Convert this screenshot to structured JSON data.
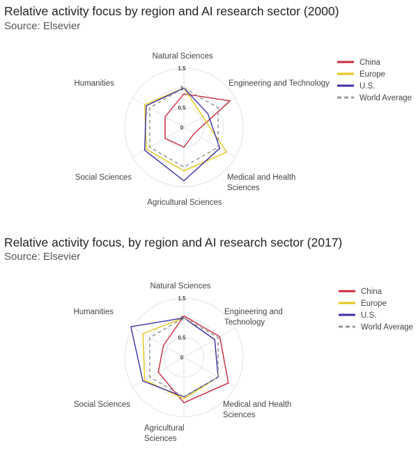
{
  "charts": [
    {
      "title": "Relative activity focus by region and AI research sector (2000)",
      "source": "Source: Elsevier"
    },
    {
      "title": "Relative activity focus, by region and AI research sector (2017)",
      "source": "Source: Elsevier"
    }
  ],
  "chart_data": [
    {
      "type": "radar",
      "title": "Relative activity focus by region and AI research sector (2000)",
      "source": "Source: Elsevier",
      "axes": [
        "Natural Sciences",
        "Engineering and Technology",
        "Medical and Health Sciences",
        "Agricultural Sciences",
        "Social Sciences",
        "Humanities"
      ],
      "axis_labels": [
        [
          "Natural Sciences"
        ],
        [
          "Engineering and Technology"
        ],
        [
          "Medical and Health",
          "Sciences"
        ],
        [
          "Agricultural Sciences"
        ],
        [
          "Social Sciences"
        ],
        [
          "Humanities"
        ]
      ],
      "r_ticks": [
        0,
        0.5,
        1,
        1.5
      ],
      "rlim": [
        0,
        1.5
      ],
      "legend_position": "top-right",
      "series": [
        {
          "name": "China",
          "color": "#c8293b",
          "dash": false,
          "values": [
            0.85,
            1.35,
            0.3,
            0.5,
            0.55,
            0.55
          ]
        },
        {
          "name": "Europe",
          "color": "#e6c619",
          "dash": false,
          "values": [
            1.0,
            0.55,
            1.25,
            1.1,
            1.1,
            1.15
          ]
        },
        {
          "name": "U.S.",
          "color": "#3b2fa8",
          "dash": false,
          "values": [
            1.0,
            0.7,
            1.05,
            1.35,
            1.15,
            1.1
          ]
        },
        {
          "name": "World Average",
          "color": "#999999",
          "dash": true,
          "values": [
            1,
            1,
            1,
            1,
            1,
            1
          ]
        }
      ]
    },
    {
      "type": "radar",
      "title": "Relative activity focus, by region and AI research sector (2017)",
      "source": "Source: Elsevier",
      "axes": [
        "Natural Sciences",
        "Engineering and Technology",
        "Medical and Health Sciences",
        "Agricultural Sciences",
        "Social Sciences",
        "Humanities"
      ],
      "axis_labels": [
        [
          "Natural Sciences"
        ],
        [
          "Engineering and",
          "Technology"
        ],
        [
          "Medical and Health",
          "Sciences"
        ],
        [
          "Agricultural",
          "Sciences"
        ],
        [
          "Social Sciences"
        ],
        [
          "Humanities"
        ]
      ],
      "r_ticks": [
        0,
        0.5,
        1,
        1.5
      ],
      "rlim": [
        0,
        1.5
      ],
      "legend_position": "top-right",
      "series": [
        {
          "name": "China",
          "color": "#c8293b",
          "dash": false,
          "values": [
            1.05,
            1.05,
            1.3,
            1.15,
            0.75,
            0.6
          ]
        },
        {
          "name": "Europe",
          "color": "#e6c619",
          "dash": false,
          "values": [
            1.0,
            0.9,
            1.0,
            1.05,
            1.15,
            1.2
          ]
        },
        {
          "name": "U.S.",
          "color": "#3b2fa8",
          "dash": false,
          "values": [
            1.0,
            0.9,
            1.0,
            1.0,
            1.2,
            1.55
          ]
        },
        {
          "name": "World Average",
          "color": "#999999",
          "dash": true,
          "values": [
            1,
            1,
            1,
            1,
            1,
            1
          ]
        }
      ]
    }
  ]
}
